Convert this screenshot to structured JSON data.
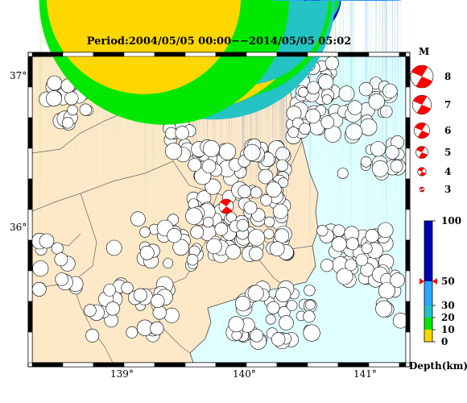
{
  "map": {
    "title": "Period:2004/05/05 00:00−−2014/05/05 05:02",
    "lat_ticks": [
      "37°",
      "36°"
    ],
    "lon_ticks": [
      "139°",
      "140°",
      "141°"
    ],
    "land_color": "#fde9c8",
    "sea_color": "#e0ffff"
  },
  "magnitude_legend": {
    "header": "M",
    "items": [
      {
        "label": "8",
        "mag": 8
      },
      {
        "label": "7",
        "mag": 7
      },
      {
        "label": "6",
        "mag": 6
      },
      {
        "label": "5",
        "mag": 5
      },
      {
        "label": "4",
        "mag": 4
      },
      {
        "label": "3",
        "mag": 3
      }
    ],
    "color": "#ff0000"
  },
  "depth_scale": {
    "ticks": [
      "100",
      "50",
      "30",
      "20",
      "10",
      "0"
    ],
    "unit_label": "Depth(km)",
    "bands": [
      {
        "from": 50,
        "to": 100,
        "color": "#0000b4"
      },
      {
        "from": 30,
        "to": 50,
        "color": "#2aa6ff"
      },
      {
        "from": 20,
        "to": 30,
        "color": "#24c4c4"
      },
      {
        "from": 10,
        "to": 20,
        "color": "#00e800"
      },
      {
        "from": 0,
        "to": 10,
        "color": "#ffd700"
      }
    ]
  }
}
